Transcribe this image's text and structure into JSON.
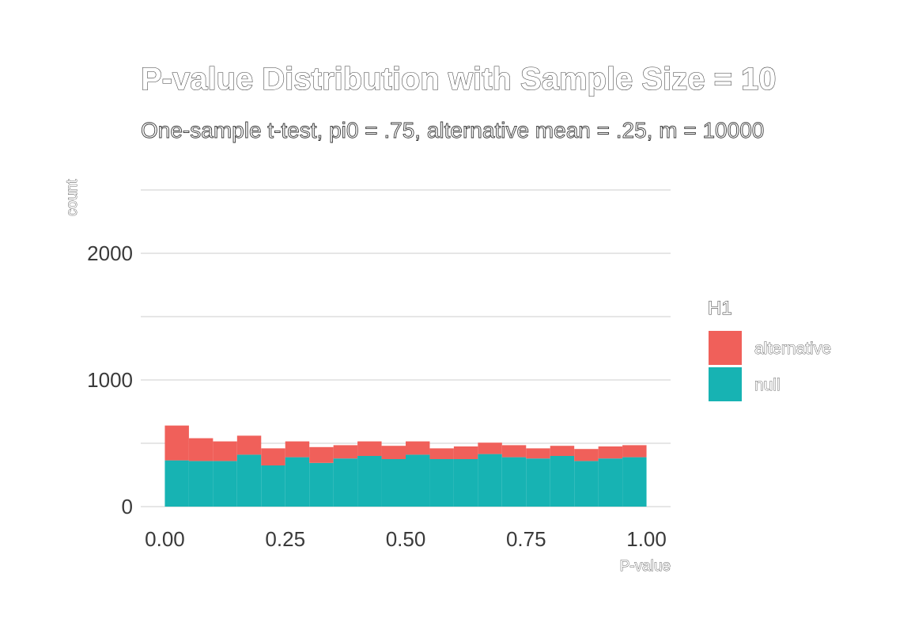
{
  "chart_data": {
    "type": "bar",
    "stacked": true,
    "title": "P-value Distribution with Sample Size = 10",
    "subtitle": "One-sample t-test, pi0 = .75, alternative mean = .25, m = 10000",
    "xlabel": "P-value",
    "ylabel": "count",
    "xlim": [
      -0.05,
      1.05
    ],
    "ylim": [
      0,
      2500
    ],
    "x_ticks": [
      0,
      0.25,
      0.5,
      0.75,
      1.0
    ],
    "x_tick_labels": [
      "0.00",
      "0.25",
      "0.50",
      "0.75",
      "1.00"
    ],
    "y_ticks": [
      0,
      1000,
      2000
    ],
    "y_tick_labels": [
      "0",
      "1000",
      "2000"
    ],
    "y_minor_gridlines": [
      500,
      1500,
      2500
    ],
    "grid": true,
    "bin_width": 0.05,
    "bin_centers": [
      0.025,
      0.075,
      0.125,
      0.175,
      0.225,
      0.275,
      0.325,
      0.375,
      0.425,
      0.475,
      0.525,
      0.575,
      0.625,
      0.675,
      0.725,
      0.775,
      0.825,
      0.875,
      0.925,
      0.975
    ],
    "series": [
      {
        "name": "null",
        "color": "#17b3b3",
        "values": [
          365,
          360,
          360,
          410,
          325,
          390,
          345,
          380,
          400,
          375,
          410,
          375,
          375,
          415,
          390,
          380,
          400,
          360,
          380,
          390
        ]
      },
      {
        "name": "alternative",
        "color": "#f0605a",
        "values": [
          275,
          180,
          155,
          150,
          135,
          125,
          125,
          105,
          115,
          105,
          105,
          85,
          100,
          90,
          95,
          80,
          80,
          95,
          95,
          95
        ]
      }
    ],
    "legend": {
      "title": "H1",
      "position": "right",
      "entries": [
        "alternative",
        "null"
      ]
    }
  }
}
